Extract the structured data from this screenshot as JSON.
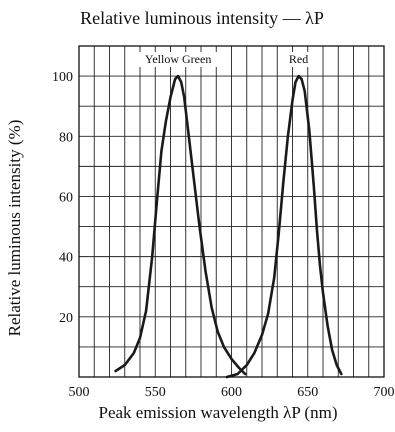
{
  "chart_data": {
    "type": "line",
    "title": "Relative luminous intensity — λP",
    "xlabel": "Peak emission wavelength  λP (nm)",
    "ylabel": "Relative luminous intensity  (%)",
    "xlim": [
      500,
      700
    ],
    "ylim": [
      0,
      110
    ],
    "xticks": [
      "500",
      "550",
      "600",
      "650",
      "700"
    ],
    "yticks": [
      "20",
      "40",
      "60",
      "80",
      "100"
    ],
    "grid": true,
    "series": [
      {
        "name": "Yellow Green",
        "line_color": "#1a1a1a",
        "x": [
          524,
          530,
          536,
          540,
          544,
          548,
          551,
          554,
          557,
          560,
          563,
          565,
          567,
          569,
          572,
          575,
          579,
          583,
          587,
          591,
          595,
          600,
          605,
          609
        ],
        "y": [
          2,
          4,
          8,
          13,
          22,
          40,
          58,
          75,
          85,
          93,
          99,
          100,
          98,
          93,
          80,
          67,
          50,
          35,
          23,
          15,
          10,
          6,
          3,
          1
        ]
      },
      {
        "name": "Red",
        "line_color": "#1a1a1a",
        "x": [
          597,
          604,
          610,
          615,
          620,
          624,
          628,
          631,
          634,
          637,
          640,
          642,
          644,
          646,
          648,
          651,
          654,
          656,
          658,
          660,
          663,
          666,
          669,
          672
        ],
        "y": [
          0,
          1,
          4,
          8,
          14,
          21,
          33,
          48,
          65,
          80,
          92,
          98,
          100,
          99,
          95,
          82,
          63,
          49,
          37,
          28,
          17,
          9,
          4,
          1
        ]
      }
    ]
  }
}
